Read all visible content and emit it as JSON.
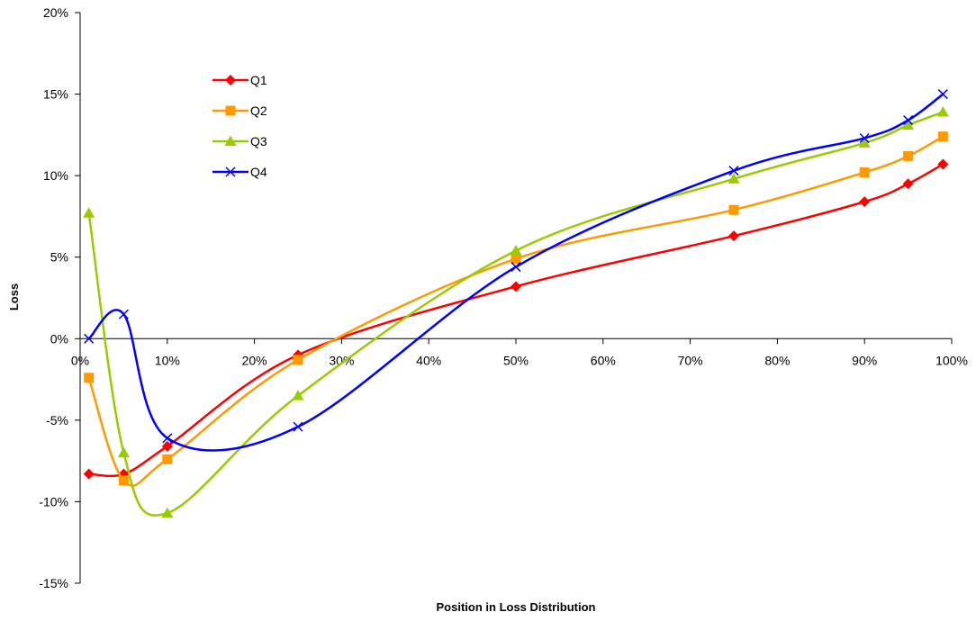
{
  "chart_data": {
    "type": "line",
    "xlabel": "Position in Loss Distribution",
    "ylabel": "Loss",
    "x": [
      1,
      5,
      10,
      25,
      50,
      75,
      90,
      95,
      99
    ],
    "xlim": [
      0,
      100
    ],
    "ylim": [
      -15,
      20
    ],
    "x_ticks": [
      "0%",
      "10%",
      "20%",
      "30%",
      "40%",
      "50%",
      "60%",
      "70%",
      "80%",
      "90%",
      "100%"
    ],
    "y_ticks": [
      "20%",
      "15%",
      "10%",
      "5%",
      "0%",
      "-5%",
      "-10%",
      "-15%"
    ],
    "grid": false,
    "legend_position": "top-left",
    "series": [
      {
        "name": "Q1",
        "color": "#ff0000",
        "marker": "diamond",
        "values": [
          -8.3,
          -8.3,
          -6.6,
          -1.0,
          3.2,
          6.3,
          8.4,
          9.5,
          10.7
        ]
      },
      {
        "name": "Q2",
        "color": "#ff9900",
        "marker": "square",
        "values": [
          -2.4,
          -8.7,
          -7.4,
          -1.3,
          4.9,
          7.9,
          10.2,
          11.2,
          12.4
        ]
      },
      {
        "name": "Q3",
        "color": "#99cc00",
        "marker": "triangle",
        "values": [
          7.7,
          -7.0,
          -10.7,
          -3.5,
          5.4,
          9.8,
          12.0,
          13.1,
          13.9
        ]
      },
      {
        "name": "Q4",
        "color": "#0000ff",
        "marker": "cross",
        "values": [
          0.0,
          1.5,
          -6.1,
          -5.4,
          4.4,
          10.3,
          12.3,
          13.4,
          15.0
        ]
      }
    ]
  }
}
